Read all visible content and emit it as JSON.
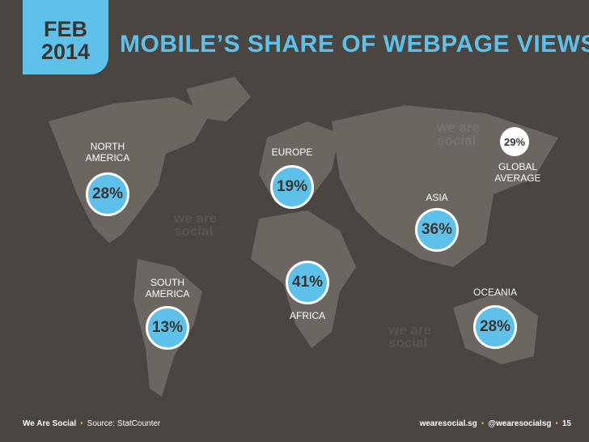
{
  "header": {
    "date_tab": [
      "FEB",
      "2014"
    ],
    "title": "MOBILE’S SHARE OF WEBPAGE VIEWS"
  },
  "regions": [
    {
      "label": "NORTH AMERICA",
      "value": "28%"
    },
    {
      "label": "EUROPE",
      "value": "19%"
    },
    {
      "label": "ASIA",
      "value": "36%"
    },
    {
      "label": "AFRICA",
      "value": "41%"
    },
    {
      "label": "SOUTH AMERICA",
      "value": "13%"
    },
    {
      "label": "OCEANIA",
      "value": "28%"
    }
  ],
  "global_average": {
    "label": "GLOBAL AVERAGE",
    "value": "29%"
  },
  "watermark": "we are social",
  "footer": {
    "left": [
      "We Are Social",
      "Source: StatCounter"
    ],
    "right": [
      "wearesocial.sg",
      "@wearesocialsg",
      "15"
    ]
  }
}
